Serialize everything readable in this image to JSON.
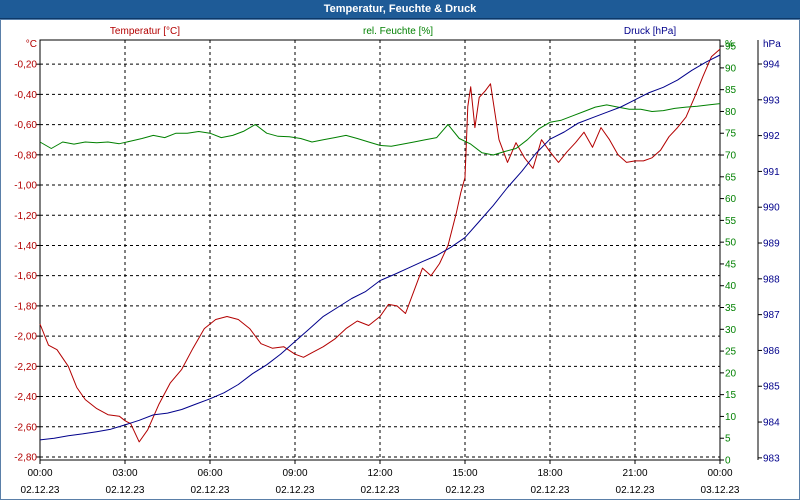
{
  "window": {
    "title": "Temperatur, Feuchte & Druck"
  },
  "colors": {
    "temperature": "#b30000",
    "humidity": "#008000",
    "pressure": "#00008b",
    "grid": "#000000"
  },
  "chart_data": {
    "type": "line",
    "title": "Temperatur, Feuchte & Druck",
    "x_ticks": [
      {
        "time": "00:00",
        "date": "02.12.23"
      },
      {
        "time": "03:00",
        "date": "02.12.23"
      },
      {
        "time": "06:00",
        "date": "02.12.23"
      },
      {
        "time": "09:00",
        "date": "02.12.23"
      },
      {
        "time": "12:00",
        "date": "02.12.23"
      },
      {
        "time": "15:00",
        "date": "02.12.23"
      },
      {
        "time": "18:00",
        "date": "02.12.23"
      },
      {
        "time": "21:00",
        "date": "02.12.23"
      },
      {
        "time": "00:00",
        "date": "03.12.23"
      }
    ],
    "x_range_hours": [
      0,
      24
    ],
    "axes": {
      "temperature": {
        "label": "Temperatur [°C]",
        "unit": "°C",
        "range": [
          -2.82,
          -0.04
        ],
        "ticks": [
          "-0,20",
          "-0,40",
          "-0,60",
          "-0,80",
          "-1,00",
          "-1,20",
          "-1,40",
          "-1,60",
          "-1,80",
          "-2,00",
          "-2,20",
          "-2,40",
          "-2,60",
          "-2,80"
        ],
        "tick_values": [
          -0.2,
          -0.4,
          -0.6,
          -0.8,
          -1.0,
          -1.2,
          -1.4,
          -1.6,
          -1.8,
          -2.0,
          -2.2,
          -2.4,
          -2.6,
          -2.8
        ]
      },
      "humidity": {
        "label": "rel. Feuchte [%]",
        "unit": "%",
        "range": [
          0,
          96.4
        ],
        "ticks": [
          "0",
          "5",
          "10",
          "15",
          "20",
          "25",
          "30",
          "35",
          "40",
          "45",
          "50",
          "55",
          "60",
          "65",
          "70",
          "75",
          "80",
          "85",
          "90",
          "95"
        ],
        "tick_values": [
          0,
          5,
          10,
          15,
          20,
          25,
          30,
          35,
          40,
          45,
          50,
          55,
          60,
          65,
          70,
          75,
          80,
          85,
          90,
          95
        ]
      },
      "pressure": {
        "label": "Druck [hPa]",
        "unit": "hPa",
        "range": [
          982.94,
          994.67
        ],
        "ticks": [
          "983",
          "984",
          "985",
          "986",
          "987",
          "988",
          "989",
          "990",
          "991",
          "992",
          "993",
          "994"
        ],
        "tick_values": [
          983,
          984,
          985,
          986,
          987,
          988,
          989,
          990,
          991,
          992,
          993,
          994
        ]
      }
    },
    "series": [
      {
        "name": "Temperatur [°C]",
        "axis": "temperature",
        "x": [
          0,
          0.3,
          0.6,
          1.0,
          1.3,
          1.6,
          2.0,
          2.4,
          2.8,
          3.0,
          3.2,
          3.5,
          3.8,
          4.2,
          4.6,
          5.0,
          5.4,
          5.8,
          6.2,
          6.6,
          7.0,
          7.4,
          7.8,
          8.2,
          8.6,
          9.0,
          9.3,
          9.6,
          10.0,
          10.4,
          10.8,
          11.2,
          11.6,
          12.0,
          12.3,
          12.6,
          12.9,
          13.2,
          13.5,
          13.8,
          14.1,
          14.4,
          14.7,
          14.85,
          15.0,
          15.1,
          15.2,
          15.35,
          15.5,
          15.7,
          15.9,
          16.2,
          16.5,
          16.8,
          17.1,
          17.4,
          17.7,
          18.0,
          18.3,
          18.6,
          18.9,
          19.2,
          19.5,
          19.8,
          20.1,
          20.4,
          20.7,
          21.0,
          21.3,
          21.6,
          21.9,
          22.2,
          22.5,
          22.8,
          23.1,
          23.4,
          23.7,
          24.0
        ],
        "y": [
          -1.92,
          -2.06,
          -2.09,
          -2.2,
          -2.34,
          -2.42,
          -2.48,
          -2.52,
          -2.53,
          -2.56,
          -2.58,
          -2.7,
          -2.62,
          -2.45,
          -2.31,
          -2.22,
          -2.08,
          -1.95,
          -1.89,
          -1.87,
          -1.89,
          -1.95,
          -2.05,
          -2.08,
          -2.07,
          -2.12,
          -2.14,
          -2.11,
          -2.07,
          -2.02,
          -1.95,
          -1.9,
          -1.93,
          -1.87,
          -1.79,
          -1.8,
          -1.85,
          -1.7,
          -1.55,
          -1.6,
          -1.52,
          -1.4,
          -1.18,
          -1.05,
          -0.95,
          -0.48,
          -0.35,
          -0.62,
          -0.42,
          -0.38,
          -0.33,
          -0.7,
          -0.85,
          -0.72,
          -0.82,
          -0.89,
          -0.7,
          -0.78,
          -0.85,
          -0.78,
          -0.72,
          -0.65,
          -0.75,
          -0.62,
          -0.7,
          -0.8,
          -0.85,
          -0.84,
          -0.84,
          -0.82,
          -0.77,
          -0.68,
          -0.62,
          -0.55,
          -0.42,
          -0.28,
          -0.15,
          -0.1
        ]
      },
      {
        "name": "rel. Feuchte [%]",
        "axis": "humidity",
        "x": [
          0,
          0.4,
          0.8,
          1.2,
          1.6,
          2.0,
          2.4,
          2.8,
          3.2,
          3.6,
          4.0,
          4.4,
          4.8,
          5.2,
          5.6,
          6.0,
          6.4,
          6.8,
          7.2,
          7.6,
          8.0,
          8.4,
          8.8,
          9.2,
          9.6,
          10.0,
          10.4,
          10.8,
          11.2,
          11.6,
          12.0,
          12.4,
          12.8,
          13.2,
          13.6,
          14.0,
          14.4,
          14.8,
          15.2,
          15.6,
          16.0,
          16.4,
          16.8,
          17.2,
          17.6,
          18.0,
          18.4,
          18.8,
          19.2,
          19.6,
          20.0,
          20.4,
          20.8,
          21.2,
          21.6,
          22.0,
          22.4,
          22.8,
          23.2,
          23.6,
          24.0
        ],
        "y": [
          73,
          71.5,
          73,
          72.5,
          73,
          72.8,
          73,
          72.6,
          73.2,
          73.8,
          74.5,
          74,
          75,
          75,
          75.4,
          75,
          74,
          74.5,
          75.5,
          77,
          75,
          74.3,
          74.2,
          73.8,
          73,
          73.5,
          74,
          74.5,
          73.8,
          73,
          72.2,
          72,
          72.5,
          73,
          73.5,
          74,
          77,
          73.8,
          72.5,
          70.5,
          70,
          70.8,
          71.5,
          73.5,
          76,
          77.5,
          78,
          79,
          80,
          81,
          81.5,
          81,
          80.5,
          80.5,
          80,
          80.2,
          80.7,
          81,
          81.2,
          81.5,
          81.8
        ]
      },
      {
        "name": "Druck [hPa]",
        "axis": "pressure",
        "x": [
          0,
          0.5,
          1.0,
          1.5,
          2.0,
          2.5,
          3.0,
          3.5,
          4.0,
          4.5,
          5.0,
          5.5,
          6.0,
          6.5,
          7.0,
          7.5,
          8.0,
          8.5,
          9.0,
          9.5,
          10.0,
          10.5,
          11.0,
          11.5,
          12.0,
          12.5,
          13.0,
          13.5,
          14.0,
          14.5,
          15.0,
          15.5,
          16.0,
          16.5,
          17.0,
          17.5,
          18.0,
          18.5,
          19.0,
          19.5,
          20.0,
          20.5,
          21.0,
          21.5,
          22.0,
          22.5,
          23.0,
          23.5,
          24.0
        ],
        "y": [
          983.5,
          983.55,
          983.62,
          983.67,
          983.73,
          983.8,
          983.92,
          984.05,
          984.2,
          984.25,
          984.35,
          984.5,
          984.65,
          984.82,
          985.05,
          985.35,
          985.6,
          985.9,
          986.25,
          986.6,
          986.95,
          987.2,
          987.45,
          987.65,
          987.95,
          988.12,
          988.3,
          988.48,
          988.65,
          988.88,
          989.15,
          989.6,
          990.05,
          990.55,
          991.0,
          991.5,
          991.9,
          992.1,
          992.35,
          992.5,
          992.65,
          992.8,
          993.0,
          993.2,
          993.35,
          993.55,
          993.82,
          994.05,
          994.25
        ]
      }
    ]
  }
}
